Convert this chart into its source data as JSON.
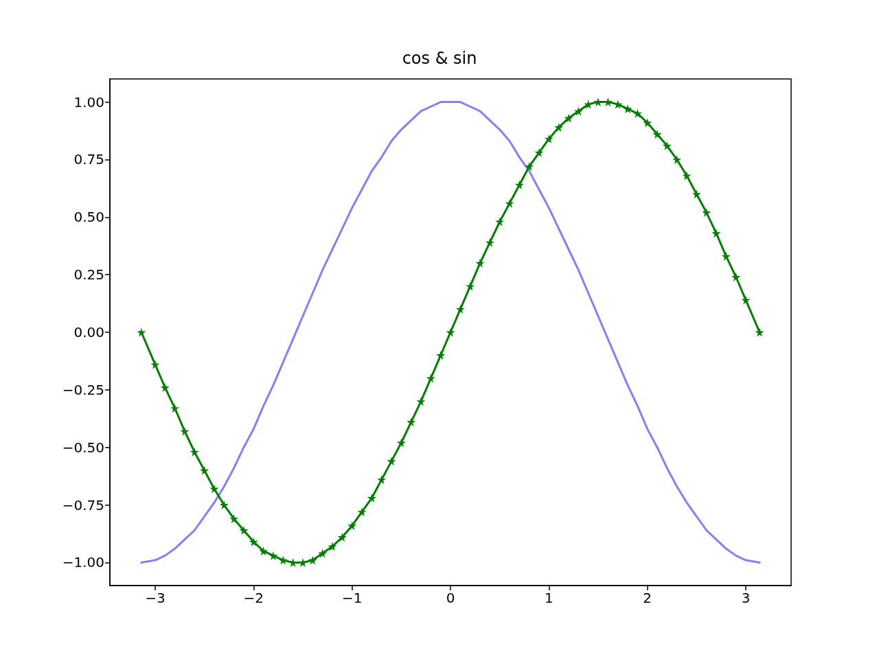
{
  "chart_data": {
    "type": "line",
    "title": "cos & sin",
    "x": [
      -3.14,
      -3.0,
      -2.9,
      -2.8,
      -2.7,
      -2.6,
      -2.5,
      -2.4,
      -2.3,
      -2.2,
      -2.1,
      -2.0,
      -1.9,
      -1.8,
      -1.7,
      -1.6,
      -1.5,
      -1.4,
      -1.3,
      -1.2,
      -1.1,
      -1.0,
      -0.9,
      -0.8,
      -0.7,
      -0.6,
      -0.5,
      -0.4,
      -0.3,
      -0.2,
      -0.1,
      0,
      0.1,
      0.2,
      0.3,
      0.4,
      0.5,
      0.6,
      0.7,
      0.8,
      0.9,
      1.0,
      1.1,
      1.2,
      1.3,
      1.4,
      1.5,
      1.6,
      1.7,
      1.8,
      1.9,
      2.0,
      2.1,
      2.2,
      2.3,
      2.4,
      2.5,
      2.6,
      2.7,
      2.8,
      2.9,
      3.0,
      3.14
    ],
    "series": [
      {
        "color": "#8080ff",
        "marker": "none",
        "line_style": "solid",
        "values": [
          -1,
          -0.99,
          -0.97,
          -0.94,
          -0.9,
          -0.86,
          -0.8,
          -0.74,
          -0.67,
          -0.59,
          -0.5,
          -0.42,
          -0.32,
          -0.23,
          -0.13,
          -0.03,
          0.07,
          0.17,
          0.27,
          0.36,
          0.45,
          0.54,
          0.62,
          0.7,
          0.76,
          0.83,
          0.88,
          0.92,
          0.96,
          0.98,
          1.0,
          1,
          1.0,
          0.98,
          0.96,
          0.92,
          0.88,
          0.83,
          0.76,
          0.7,
          0.62,
          0.54,
          0.45,
          0.36,
          0.27,
          0.17,
          0.07,
          -0.03,
          -0.13,
          -0.23,
          -0.32,
          -0.42,
          -0.5,
          -0.59,
          -0.67,
          -0.74,
          -0.8,
          -0.86,
          -0.9,
          -0.94,
          -0.97,
          -0.99,
          -1
        ]
      },
      {
        "color": "#008000",
        "marker": "star",
        "line_style": "solid",
        "values": [
          0,
          -0.14,
          -0.24,
          -0.33,
          -0.43,
          -0.52,
          -0.6,
          -0.68,
          -0.75,
          -0.81,
          -0.86,
          -0.91,
          -0.95,
          -0.97,
          -0.99,
          -1.0,
          -1.0,
          -0.99,
          -0.96,
          -0.93,
          -0.89,
          -0.84,
          -0.78,
          -0.72,
          -0.64,
          -0.56,
          -0.48,
          -0.39,
          -0.3,
          -0.2,
          -0.1,
          0,
          0.1,
          0.2,
          0.3,
          0.39,
          0.48,
          0.56,
          0.64,
          0.72,
          0.78,
          0.84,
          0.89,
          0.93,
          0.96,
          0.99,
          1.0,
          1.0,
          0.99,
          0.97,
          0.95,
          0.91,
          0.86,
          0.81,
          0.75,
          0.68,
          0.6,
          0.52,
          0.43,
          0.33,
          0.24,
          0.14,
          0
        ]
      }
    ],
    "xlim": [
      -3.46,
      3.46
    ],
    "ylim": [
      -1.1,
      1.1
    ],
    "xticks": [
      {
        "value": -3,
        "label": "−3"
      },
      {
        "value": -2,
        "label": "−2"
      },
      {
        "value": -1,
        "label": "−1"
      },
      0,
      1,
      2,
      3
    ],
    "yticks": [
      {
        "value": -1,
        "label": "−1.00"
      },
      {
        "value": -0.75,
        "label": "−0.75"
      },
      {
        "value": -0.5,
        "label": "−0.50"
      },
      {
        "value": -0.25,
        "label": "−0.25"
      },
      {
        "value": 0,
        "label": "0.00"
      },
      {
        "value": 0.25,
        "label": "0.25"
      },
      {
        "value": 0.5,
        "label": "0.50"
      },
      {
        "value": 0.75,
        "label": "0.75"
      },
      {
        "value": 1,
        "label": "1.00"
      }
    ],
    "grid": false
  }
}
